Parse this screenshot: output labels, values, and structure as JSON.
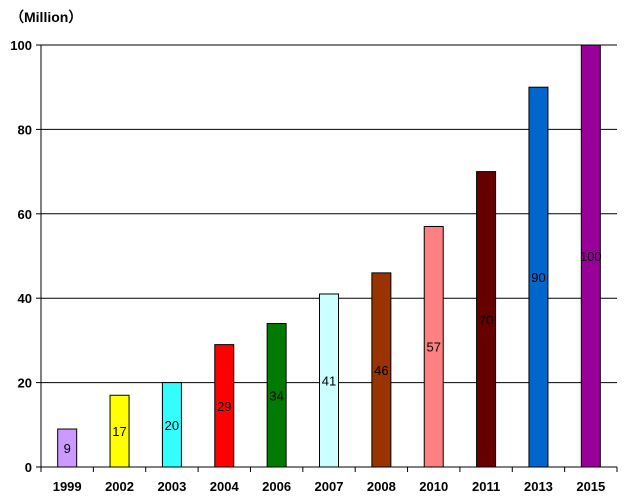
{
  "chart_data": {
    "type": "bar",
    "unit_label": "（Million）",
    "categories": [
      "1999",
      "2002",
      "2003",
      "2004",
      "2006",
      "2007",
      "2008",
      "2010",
      "2011",
      "2013",
      "2015"
    ],
    "values": [
      9,
      17,
      20,
      29,
      34,
      41,
      46,
      57,
      70,
      90,
      100
    ],
    "value_labels": [
      "9",
      "17",
      "20",
      "29",
      "34",
      "41",
      "46",
      "57",
      "70",
      "90",
      "100"
    ],
    "colors": [
      "#cc99ff",
      "#ffff00",
      "#33ffff",
      "#ff0000",
      "#007a00",
      "#ccffff",
      "#993300",
      "#ff8080",
      "#660000",
      "#0066cc",
      "#990099"
    ],
    "ylim": [
      0,
      100
    ],
    "yticks": [
      0,
      20,
      40,
      60,
      80,
      100
    ],
    "grid": true,
    "legend": "none"
  }
}
